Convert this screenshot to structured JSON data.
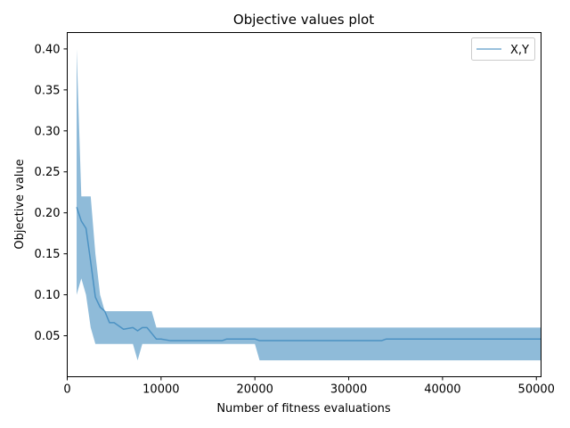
{
  "chart_data": {
    "type": "line",
    "title": "Objective values plot",
    "xlabel": "Number of fitness evaluations",
    "ylabel": "Objective value",
    "xlim": [
      0,
      50500
    ],
    "ylim": [
      0.0,
      0.42
    ],
    "xticks": [
      0,
      10000,
      20000,
      30000,
      40000,
      50000
    ],
    "yticks": [
      0.05,
      0.1,
      0.15,
      0.2,
      0.25,
      0.3,
      0.35,
      0.4
    ],
    "xtick_labels": [
      "0",
      "10000",
      "20000",
      "30000",
      "40000",
      "50000"
    ],
    "ytick_labels": [
      "0.05",
      "0.10",
      "0.15",
      "0.20",
      "0.25",
      "0.30",
      "0.35",
      "0.40"
    ],
    "grid": false,
    "legend_position": "top-right",
    "series": [
      {
        "name": "X,Y",
        "color": "#1f77b4",
        "x": [
          1000,
          1500,
          2000,
          2500,
          3000,
          3500,
          4000,
          4500,
          5000,
          6000,
          7000,
          7500,
          8000,
          8500,
          9000,
          9500,
          10000,
          11000,
          16500,
          17000,
          20000,
          20500,
          33500,
          34000,
          50500
        ],
        "y": [
          0.207,
          0.19,
          0.181,
          0.14,
          0.097,
          0.085,
          0.08,
          0.066,
          0.066,
          0.058,
          0.06,
          0.056,
          0.06,
          0.06,
          0.053,
          0.046,
          0.046,
          0.044,
          0.044,
          0.046,
          0.046,
          0.044,
          0.044,
          0.046,
          0.046
        ],
        "lower": [
          0.1,
          0.12,
          0.1,
          0.06,
          0.04,
          0.04,
          0.04,
          0.04,
          0.04,
          0.04,
          0.04,
          0.02,
          0.04,
          0.04,
          0.04,
          0.04,
          0.04,
          0.04,
          0.04,
          0.04,
          0.04,
          0.02,
          0.02,
          0.02,
          0.02
        ],
        "upper": [
          0.4,
          0.22,
          0.22,
          0.22,
          0.15,
          0.1,
          0.08,
          0.08,
          0.08,
          0.08,
          0.08,
          0.08,
          0.08,
          0.08,
          0.08,
          0.06,
          0.06,
          0.06,
          0.06,
          0.06,
          0.06,
          0.06,
          0.06,
          0.06,
          0.06
        ]
      }
    ]
  }
}
